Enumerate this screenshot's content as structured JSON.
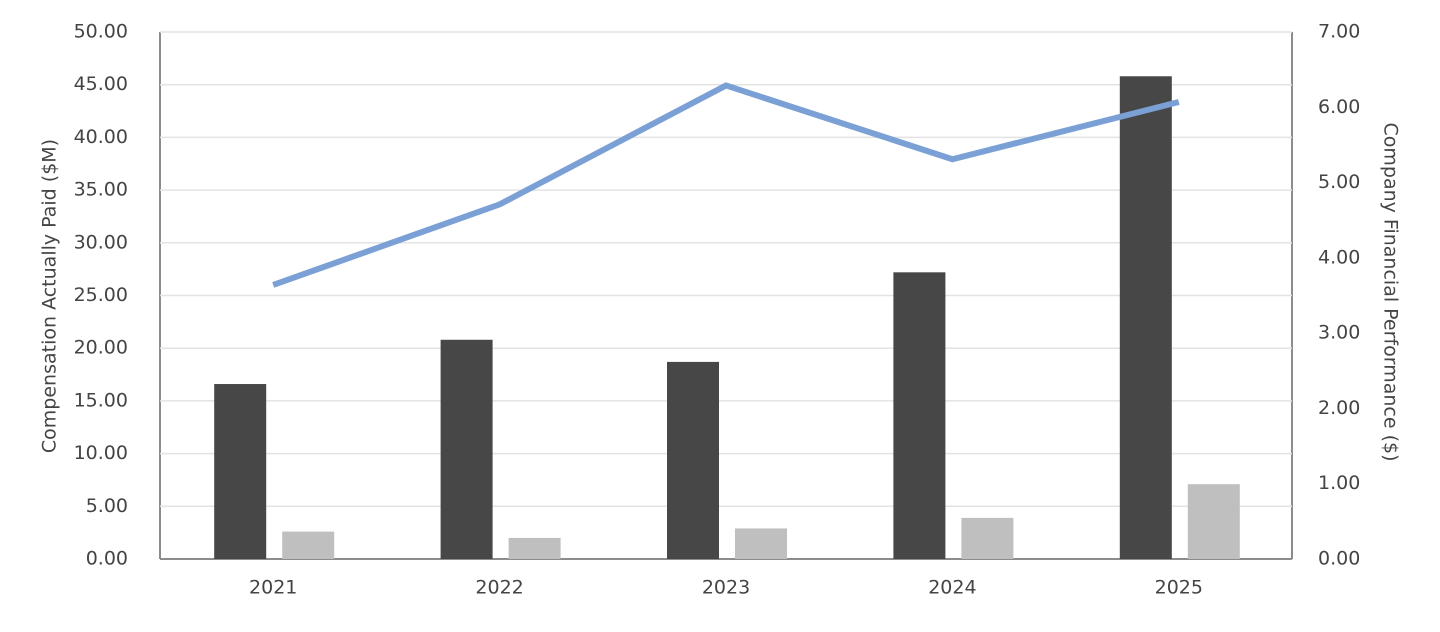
{
  "chart_data": {
    "type": "bar",
    "y_label": "Compensation Actually Paid ($M)",
    "y2_label": "Company Financial Performance ($)",
    "categories": [
      "2021",
      "2022",
      "2023",
      "2024",
      "2025"
    ],
    "series": [
      {
        "type": "bar",
        "color": "#474747",
        "values": [
          16.6,
          20.8,
          18.7,
          27.2,
          45.8
        ]
      },
      {
        "type": "bar",
        "color": "#bfbfbf",
        "values": [
          2.6,
          2.0,
          2.9,
          3.9,
          7.1
        ]
      },
      {
        "type": "line",
        "axis": "y2",
        "color": "#7aa0d6",
        "values": [
          3.64,
          4.71,
          6.29,
          5.31,
          6.07
        ]
      }
    ],
    "ylim": [
      0,
      50
    ],
    "yticks": [
      {
        "value": 0,
        "label": "0.00"
      },
      {
        "value": 5,
        "label": "5.00"
      },
      {
        "value": 10,
        "label": "10.00"
      },
      {
        "value": 15,
        "label": "15.00"
      },
      {
        "value": 20,
        "label": "20.00"
      },
      {
        "value": 25,
        "label": "25.00"
      },
      {
        "value": 30,
        "label": "30.00"
      },
      {
        "value": 35,
        "label": "35.00"
      },
      {
        "value": 40,
        "label": "40.00"
      },
      {
        "value": 45,
        "label": "45.00"
      },
      {
        "value": 50,
        "label": "50.00"
      }
    ],
    "y2lim": [
      0,
      7
    ],
    "y2ticks": [
      {
        "value": 0,
        "label": "0.00"
      },
      {
        "value": 1,
        "label": "1.00"
      },
      {
        "value": 2,
        "label": "2.00"
      },
      {
        "value": 3,
        "label": "3.00"
      },
      {
        "value": 4,
        "label": "4.00"
      },
      {
        "value": 5,
        "label": "5.00"
      },
      {
        "value": 6,
        "label": "6.00"
      },
      {
        "value": 7,
        "label": "7.00"
      }
    ],
    "grid": true
  }
}
